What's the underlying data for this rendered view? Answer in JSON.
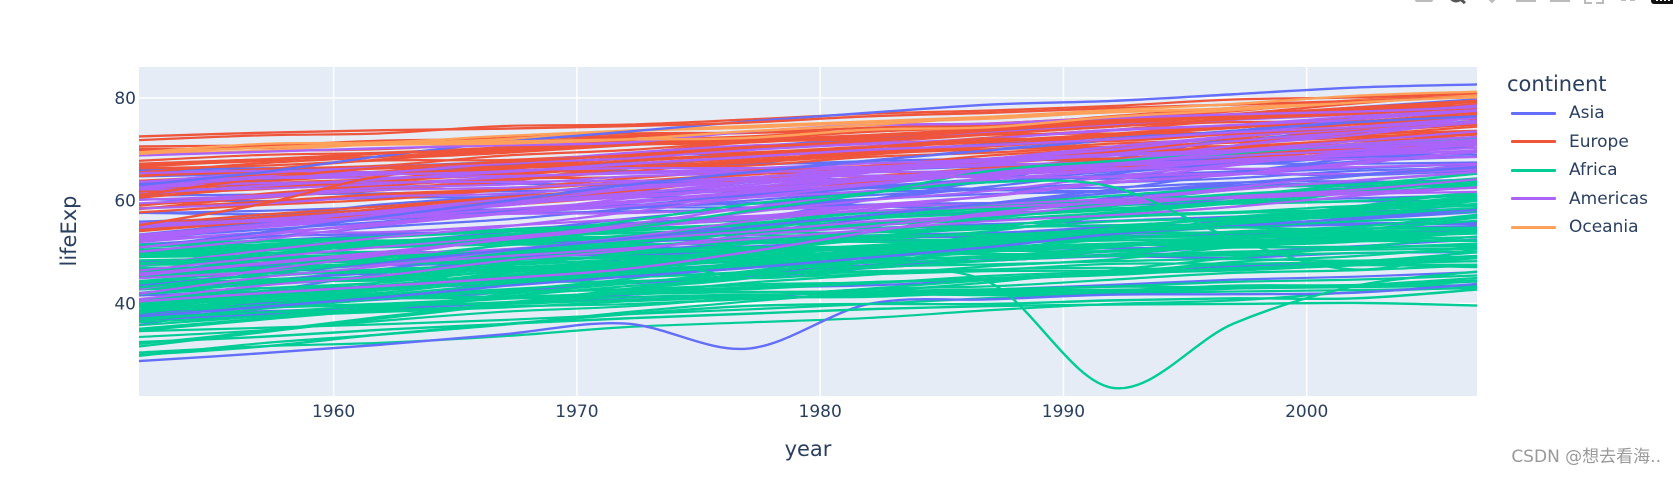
{
  "chart_data": {
    "type": "line",
    "title": "",
    "xlabel": "year",
    "ylabel": "lifeExp",
    "xlim": [
      1952,
      2007
    ],
    "ylim": [
      22,
      86
    ],
    "x_ticks": [
      1960,
      1970,
      1980,
      1990,
      2000
    ],
    "y_ticks": [
      40,
      60,
      80
    ],
    "grid": true,
    "legend_title": "continent",
    "legend_position": "right",
    "x": [
      1952,
      1957,
      1962,
      1967,
      1972,
      1977,
      1982,
      1987,
      1992,
      1997,
      2002,
      2007
    ],
    "series": [
      {
        "name": "Asia",
        "color": "#636efa",
        "lines": [
          [
            28.8,
            30.3,
            32.0,
            34.0,
            36.1,
            31.2,
            39.9,
            40.8,
            41.7,
            41.8,
            42.1,
            43.8
          ],
          [
            50.9,
            53.8,
            56.9,
            59.9,
            63.0,
            65.5,
            67.8,
            69.8,
            71.8,
            73.6,
            75.3,
            76.4
          ],
          [
            63.0,
            65.5,
            68.7,
            71.4,
            73.4,
            75.4,
            77.1,
            78.7,
            79.4,
            80.7,
            82.0,
            82.6
          ],
          [
            43.4,
            45.7,
            48.0,
            50.3,
            52.6,
            54.9,
            57.2,
            59.5,
            61.5,
            63.4,
            65.0,
            66.5
          ],
          [
            37.5,
            39.3,
            41.2,
            43.4,
            45.2,
            46.9,
            48.9,
            51.0,
            53.5,
            55.0,
            56.6,
            58.2
          ]
        ]
      },
      {
        "name": "Europe",
        "color": "#EF553B",
        "lines": [
          [
            72.5,
            73.2,
            73.7,
            74.0,
            74.5,
            75.2,
            76.4,
            77.1,
            78.0,
            78.7,
            79.4,
            80.2
          ],
          [
            66.6,
            67.9,
            69.2,
            70.0,
            70.8,
            72.0,
            73.4,
            74.3,
            75.6,
            76.8,
            78.0,
            79.3
          ],
          [
            55.2,
            59.3,
            64.8,
            66.2,
            67.7,
            68.9,
            70.4,
            72.0,
            71.6,
            73.0,
            74.2,
            75.3
          ],
          [
            61.1,
            64.3,
            66.4,
            67.5,
            68.8,
            70.4,
            71.6,
            73.0,
            74.4,
            75.9,
            76.9,
            78.1
          ]
        ]
      },
      {
        "name": "Africa",
        "color": "#00cc96",
        "lines": [
          [
            43.1,
            45.7,
            48.3,
            51.4,
            54.5,
            58.0,
            61.4,
            65.8,
            67.7,
            69.2,
            71.0,
            72.3
          ],
          [
            30.0,
            31.6,
            34.0,
            35.99,
            37.9,
            39.5,
            39.9,
            39.9,
            40.6,
            41.0,
            41.0,
            42.7
          ],
          [
            38.2,
            40.4,
            42.6,
            44.9,
            47.0,
            49.2,
            50.9,
            52.3,
            53.9,
            54.8,
            54.4,
            56.7
          ],
          [
            47.6,
            49.6,
            51.5,
            53.3,
            56.0,
            59.3,
            61.5,
            63.6,
            62.7,
            52.6,
            46.6,
            50.7
          ],
          [
            40.0,
            41.5,
            43.5,
            44.5,
            48.7,
            45.0,
            46.2,
            44.0,
            23.6,
            36.1,
            43.4,
            46.2
          ],
          [
            32.5,
            33.5,
            34.9,
            36.0,
            37.1,
            38.0,
            38.9,
            39.5,
            39.8,
            39.9,
            40.1,
            39.6
          ]
        ]
      },
      {
        "name": "Americas",
        "color": "#ab63fa",
        "lines": [
          [
            62.5,
            64.4,
            65.1,
            65.6,
            67.1,
            68.5,
            69.9,
            70.8,
            71.9,
            73.3,
            74.3,
            75.3
          ],
          [
            40.4,
            42.0,
            43.4,
            44.9,
            46.7,
            50.0,
            53.9,
            57.4,
            60.0,
            62.1,
            63.9,
            65.6
          ],
          [
            50.9,
            53.3,
            55.7,
            57.6,
            59.5,
            61.5,
            63.3,
            65.2,
            67.1,
            69.4,
            71.0,
            72.4
          ],
          [
            68.8,
            69.5,
            70.2,
            70.8,
            71.3,
            73.4,
            74.7,
            75.0,
            76.1,
            76.8,
            77.3,
            78.2
          ]
        ]
      },
      {
        "name": "Oceania",
        "color": "#FFA15A",
        "lines": [
          [
            69.1,
            70.3,
            70.9,
            71.1,
            71.9,
            73.5,
            74.7,
            76.3,
            77.6,
            78.8,
            80.4,
            81.2
          ],
          [
            69.4,
            70.3,
            71.2,
            71.5,
            71.9,
            72.2,
            73.8,
            74.3,
            76.3,
            77.6,
            79.1,
            80.2
          ]
        ]
      }
    ]
  },
  "axes": {
    "x_label": "year",
    "y_label": "lifeExp",
    "x_tick_labels": [
      "1960",
      "1970",
      "1980",
      "1990",
      "2000"
    ],
    "y_tick_labels": [
      "40",
      "60",
      "80"
    ]
  },
  "legend": {
    "title": "continent",
    "items": [
      {
        "label": "Asia",
        "color": "#636efa"
      },
      {
        "label": "Europe",
        "color": "#EF553B"
      },
      {
        "label": "Africa",
        "color": "#00cc96"
      },
      {
        "label": "Americas",
        "color": "#ab63fa"
      },
      {
        "label": "Oceania",
        "color": "#FFA15A"
      }
    ]
  },
  "modebar": {
    "buttons": [
      "camera-icon",
      "zoom-icon",
      "pan-icon",
      "zoom-in-icon",
      "zoom-out-icon",
      "autoscale-icon",
      "reset-axes-icon",
      "plotly-logo-icon"
    ]
  },
  "watermark": "CSDN @想去看海.."
}
